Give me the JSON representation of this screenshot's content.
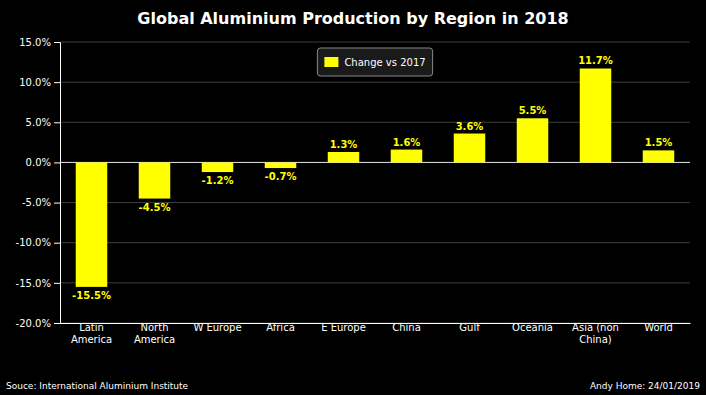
{
  "chart_data": {
    "type": "bar",
    "title": "Global Aluminium Production by Region in 2018",
    "categories": [
      "Latin\nAmerica",
      "North\nAmerica",
      "W Europe",
      "Africa",
      "E Europe",
      "China",
      "Gulf",
      "Oceania",
      "Asia (non\nChina)",
      "World"
    ],
    "series": [
      {
        "name": "Change vs 2017",
        "color": "#ffff00",
        "values": [
          -15.5,
          -4.5,
          -1.2,
          -0.7,
          1.3,
          1.6,
          3.6,
          5.5,
          11.7,
          1.5
        ],
        "value_labels": [
          "-15.5%",
          "-4.5%",
          "-1.2%",
          "-0.7%",
          "1.3%",
          "1.6%",
          "3.6%",
          "5.5%",
          "11.7%",
          "1.5%"
        ]
      }
    ],
    "ylim": [
      -20,
      15
    ],
    "yticks": [
      {
        "value": -20,
        "label": "-20.0%"
      },
      {
        "value": -15,
        "label": "-15.0%"
      },
      {
        "value": -10,
        "label": "-10.0%"
      },
      {
        "value": -5,
        "label": "-5.0%"
      },
      {
        "value": 0,
        "label": "0.0%"
      },
      {
        "value": 5,
        "label": "5.0%"
      },
      {
        "value": 10,
        "label": "10.0%"
      },
      {
        "value": 15,
        "label": "15.0%"
      }
    ],
    "grid": true,
    "legend": "upper center",
    "data_labels": true,
    "annotations": [
      "Souce: International Aluminium Institute",
      "Andy Home: 24/01/2019"
    ]
  }
}
